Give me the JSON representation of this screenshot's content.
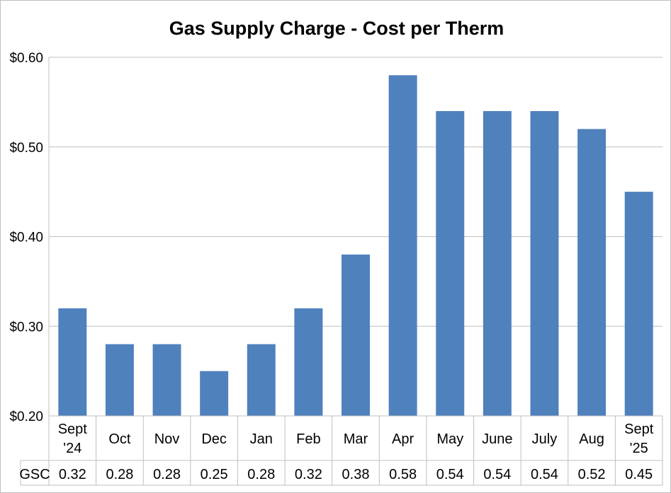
{
  "chart_data": {
    "type": "bar",
    "title": "Gas Supply Charge - Cost per Therm",
    "categories": [
      [
        "Sept",
        "'24"
      ],
      [
        "Oct"
      ],
      [
        "Nov"
      ],
      [
        "Dec"
      ],
      [
        "Jan"
      ],
      [
        "Feb"
      ],
      [
        "Mar"
      ],
      [
        "Apr"
      ],
      [
        "May"
      ],
      [
        "June"
      ],
      [
        "July"
      ],
      [
        "Aug"
      ],
      [
        "Sept",
        "'25"
      ]
    ],
    "series": [
      {
        "name": "GSC",
        "color": "#4f81bd",
        "values": [
          0.32,
          0.28,
          0.28,
          0.25,
          0.28,
          0.32,
          0.38,
          0.58,
          0.54,
          0.54,
          0.54,
          0.52,
          0.45
        ],
        "table_values": [
          "0.32",
          "0.28",
          "0.28",
          "0.25",
          "0.28",
          "0.32",
          "0.38",
          "0.58",
          "0.54",
          "0.54",
          "0.54",
          "0.52",
          "0.45"
        ]
      }
    ],
    "ylim": [
      0.2,
      0.6
    ],
    "yticks": [
      0.2,
      0.3,
      0.4,
      0.5,
      0.6
    ],
    "ytick_labels": [
      "$0.20",
      "$0.30",
      "$0.40",
      "$0.50",
      "$0.60"
    ],
    "grid": true,
    "data_table": true
  }
}
